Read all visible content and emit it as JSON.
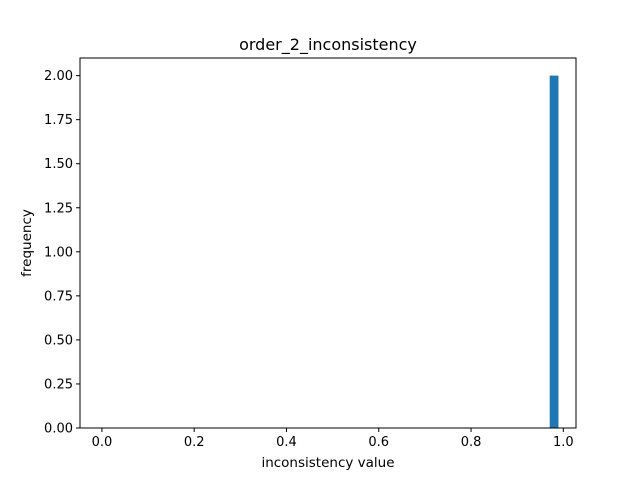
{
  "chart_data": {
    "type": "bar",
    "title": "order_2_inconsistency",
    "xlabel": "inconsistency value",
    "ylabel": "frequency",
    "xlim": [
      -0.0475,
      1.0275
    ],
    "ylim": [
      0,
      2.1
    ],
    "xticks": [
      0.0,
      0.2,
      0.4,
      0.6,
      0.8,
      1.0
    ],
    "xtick_labels": [
      "0.0",
      "0.2",
      "0.4",
      "0.6",
      "0.8",
      "1.0"
    ],
    "yticks": [
      0.0,
      0.25,
      0.5,
      0.75,
      1.0,
      1.25,
      1.5,
      1.75,
      2.0
    ],
    "ytick_labels": [
      "0.00",
      "0.25",
      "0.50",
      "0.75",
      "1.00",
      "1.25",
      "1.50",
      "1.75",
      "2.00"
    ],
    "bars": [
      {
        "x0": 0.9705,
        "x1": 0.9895,
        "value": 2
      }
    ],
    "color": "#1f77b4",
    "grid": false,
    "legend": false
  }
}
